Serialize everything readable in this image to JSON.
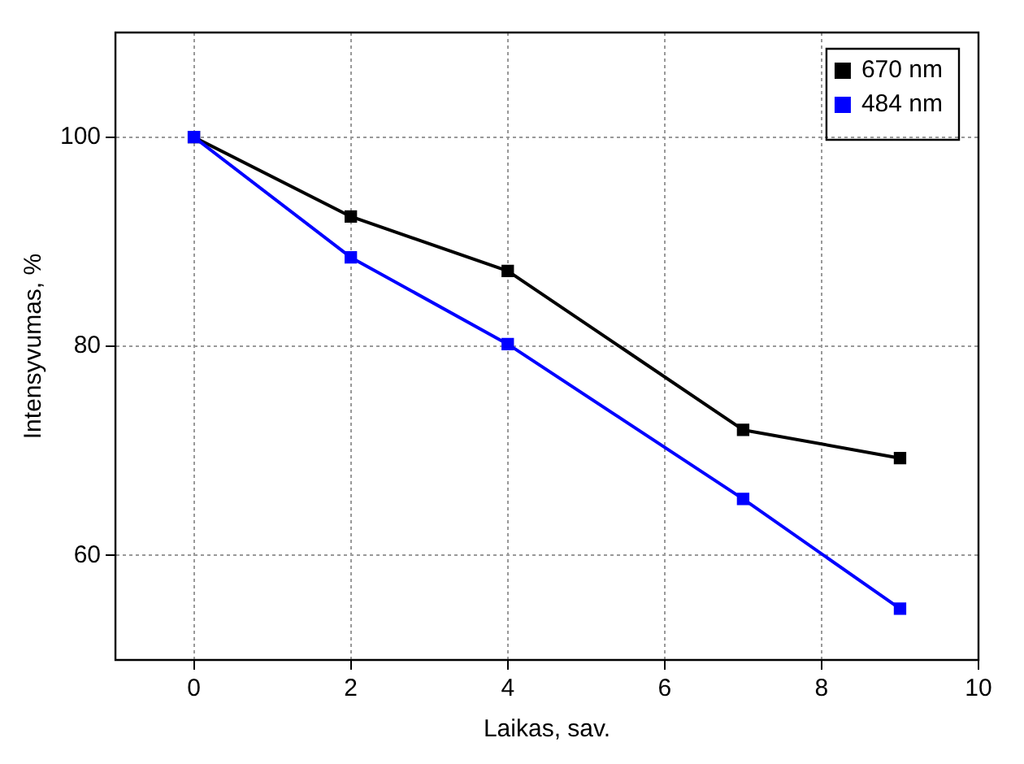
{
  "chart_data": {
    "type": "line",
    "xlabel": "Laikas, sav.",
    "ylabel": "Intensyvumas, %",
    "x": [
      0,
      2,
      4,
      7,
      9
    ],
    "series": [
      {
        "name": "670 nm",
        "color": "#000000",
        "values": [
          100,
          92.4,
          87.2,
          72.0,
          69.3
        ]
      },
      {
        "name": "484 nm",
        "color": "#0000ff",
        "values": [
          100,
          88.5,
          80.2,
          65.4,
          54.9
        ]
      }
    ],
    "xlim": [
      -1,
      10
    ],
    "xticks": [
      0,
      2,
      4,
      6,
      8,
      10
    ],
    "ylim": [
      50,
      110
    ],
    "yticks": [
      60,
      80,
      100
    ],
    "grid": true,
    "legend": "top right",
    "marker": "square",
    "line_style": "solid"
  }
}
